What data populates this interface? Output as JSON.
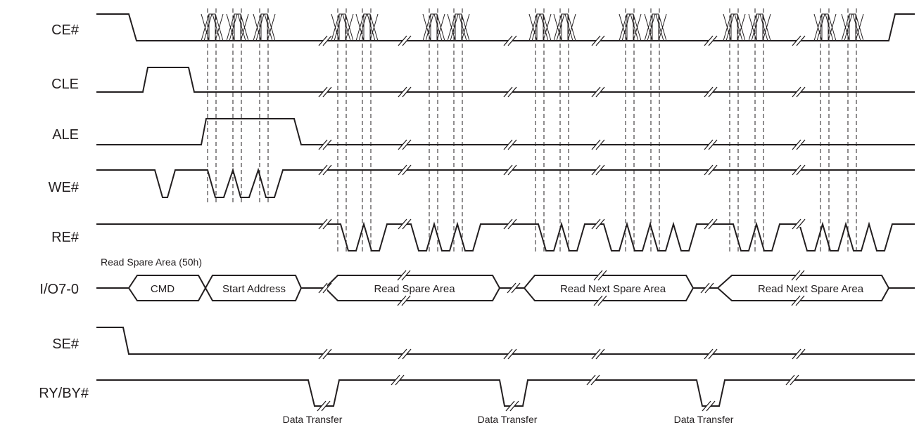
{
  "signals": [
    "CE#",
    "CLE",
    "ALE",
    "WE#",
    "RE#",
    "I/O7-0",
    "SE#",
    "RY/BY#"
  ],
  "command_note": "Read Spare Area (50h)",
  "bus": {
    "cmd": "CMD",
    "address": "Start Address",
    "read_1": "Read Spare Area",
    "read_2": "Read Next Spare Area",
    "read_3": "Read Next Spare Area"
  },
  "data_transfer": [
    "Data Transfer",
    "Data Transfer",
    "Data Transfer"
  ],
  "colors": {
    "line": "#231f20",
    "background": "#ffffff"
  }
}
